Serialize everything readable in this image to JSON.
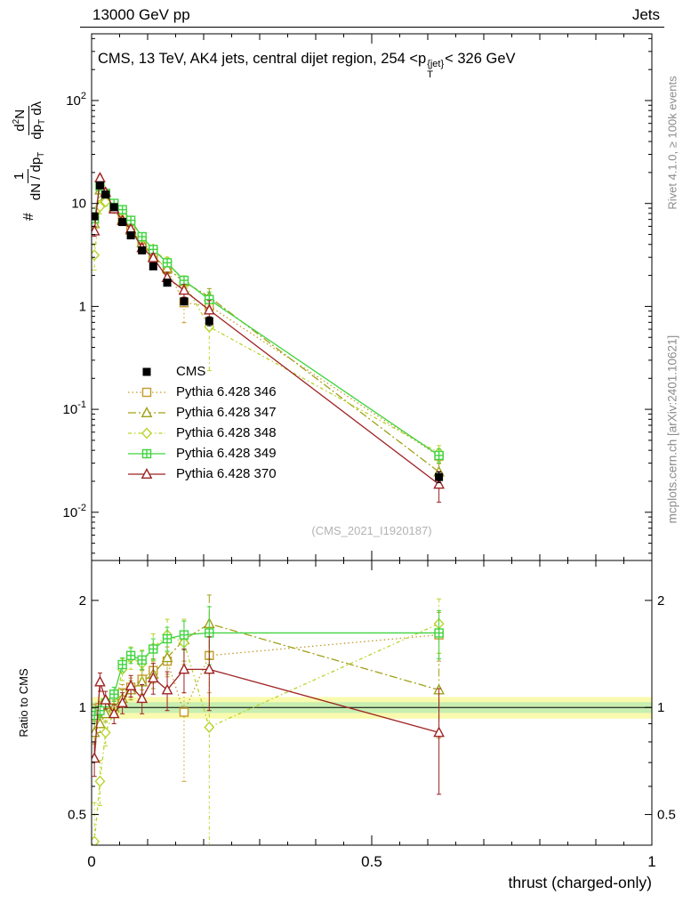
{
  "header": {
    "left_label": "13000 GeV pp",
    "right_label": "Jets"
  },
  "title": {
    "pre": "CMS, 13 TeV, AK4 jets, central dijet region, 254 <p",
    "stack_top": "{jet}",
    "stack_bottom": "T",
    "post": "< 326 GeV"
  },
  "ylabel_main": {
    "hash": "#",
    "frac1": {
      "num": "1",
      "den_pre": "dN / dp",
      "den_sub": "T"
    },
    "frac2": {
      "num_pre": "d",
      "num_sup": "2",
      "num_post": "N",
      "den_pre": "dp",
      "den_sub": "T",
      "den_post": " dλ"
    }
  },
  "ratio_ylabel": "Ratio to CMS",
  "xlabel": "thrust (charged-only)",
  "watermark": "(CMS_2021_I1920187)",
  "side_notes": {
    "top_right": "Rivet 4.1.0, ≥ 100k events",
    "bottom_right": "mcplots.cern.ch [arXiv:2401.10621]"
  },
  "chart_data": {
    "type": "line",
    "title": "CMS, 13 TeV, AK4 jets, central dijet region, 254 < p_T^{jet} < 326 GeV",
    "xlabel": "thrust (charged-only)",
    "ylabel": "1/(dN/dp_T) d²N/(dp_T dλ)",
    "ratio_ylabel": "Ratio to CMS",
    "yscale": "log",
    "xlim": [
      0,
      1
    ],
    "ylim_main": [
      0.0034,
      445
    ],
    "ylim_ratio": [
      0.41,
      2.59
    ],
    "legend_position": "inside-left-middle",
    "x_ticks": {
      "values": [
        0,
        0.5,
        1
      ],
      "labels": [
        "0",
        "0.5",
        "1"
      ]
    },
    "y_ticks_main": [
      {
        "v": 100,
        "base": "10",
        "exp": "2"
      },
      {
        "v": 10,
        "base": "10"
      },
      {
        "v": 1,
        "base": "1"
      },
      {
        "v": 0.1,
        "base": "10",
        "exp": "-1"
      },
      {
        "v": 0.01,
        "base": "10",
        "exp": "-2"
      }
    ],
    "y_ticks_ratio": [
      {
        "v": 2,
        "label": "2"
      },
      {
        "v": 1,
        "label": "1"
      },
      {
        "v": 0.5,
        "label": "0.5"
      }
    ],
    "x": [
      0.005,
      0.015,
      0.025,
      0.04,
      0.055,
      0.07,
      0.09,
      0.11,
      0.135,
      0.165,
      0.21,
      0.62
    ],
    "cms": {
      "label": "CMS",
      "values": [
        7.5,
        15.0,
        12.2,
        9.2,
        6.6,
        4.9,
        3.5,
        2.45,
        1.7,
        1.12,
        0.72,
        0.022
      ],
      "rel_err": [
        0.07,
        0.05,
        0.05,
        0.05,
        0.05,
        0.05,
        0.06,
        0.06,
        0.07,
        0.08,
        0.1,
        0.12
      ]
    },
    "series": [
      {
        "id": "346",
        "label": "Pythia 6.428 346",
        "color": "#c49a2a",
        "marker": "open-square",
        "line": "dotted",
        "ratio": [
          0.97,
          1.0,
          1.02,
          1.05,
          1.1,
          1.14,
          1.2,
          1.27,
          1.35,
          0.97,
          1.4,
          1.6
        ],
        "ratio_err": [
          0.05,
          0.04,
          0.04,
          0.05,
          0.06,
          0.07,
          0.08,
          0.1,
          0.13,
          0.35,
          0.3,
          0.25
        ]
      },
      {
        "id": "347",
        "label": "Pythia 6.428 347",
        "color": "#a0a018",
        "marker": "open-triangle",
        "line": "dashdot",
        "ratio": [
          0.85,
          0.9,
          0.96,
          1.0,
          1.06,
          1.12,
          1.18,
          1.24,
          1.38,
          1.55,
          1.72,
          1.12
        ],
        "ratio_err": [
          0.06,
          0.05,
          0.05,
          0.05,
          0.06,
          0.07,
          0.09,
          0.11,
          0.14,
          0.2,
          0.35,
          0.3
        ]
      },
      {
        "id": "348",
        "label": "Pythia 6.428 348",
        "color": "#b8d42a",
        "marker": "open-diamond",
        "line": "dashdotdot",
        "ratio": [
          0.42,
          0.62,
          0.85,
          0.97,
          1.28,
          1.38,
          1.33,
          1.47,
          1.6,
          1.52,
          0.88,
          1.72
        ],
        "ratio_err": [
          0.12,
          0.09,
          0.07,
          0.07,
          0.09,
          0.1,
          0.12,
          0.14,
          0.17,
          0.25,
          0.55,
          0.3
        ]
      },
      {
        "id": "349",
        "label": "Pythia 6.428 349",
        "color": "#3fd43f",
        "marker": "square-plus",
        "line": "solid",
        "ratio": [
          0.95,
          0.98,
          1.03,
          1.09,
          1.32,
          1.4,
          1.36,
          1.46,
          1.56,
          1.6,
          1.62,
          1.62
        ],
        "ratio_err": [
          0.05,
          0.04,
          0.04,
          0.05,
          0.06,
          0.07,
          0.08,
          0.1,
          0.12,
          0.15,
          0.3,
          0.25
        ]
      },
      {
        "id": "370",
        "label": "Pythia 6.428 370",
        "color": "#9e2222",
        "marker": "open-triangle",
        "line": "solid",
        "ratio": [
          0.72,
          1.18,
          1.05,
          0.96,
          1.03,
          1.15,
          1.06,
          1.21,
          1.12,
          1.28,
          1.28,
          0.85
        ],
        "ratio_err": [
          0.08,
          0.07,
          0.06,
          0.06,
          0.07,
          0.08,
          0.1,
          0.12,
          0.14,
          0.18,
          0.3,
          0.28
        ]
      }
    ],
    "bands": [
      {
        "lo": 0.93,
        "hi": 1.07,
        "color": "#fafaaf"
      },
      {
        "lo": 0.965,
        "hi": 1.035,
        "color": "#c8eeb0"
      }
    ],
    "ref_line": 1
  }
}
